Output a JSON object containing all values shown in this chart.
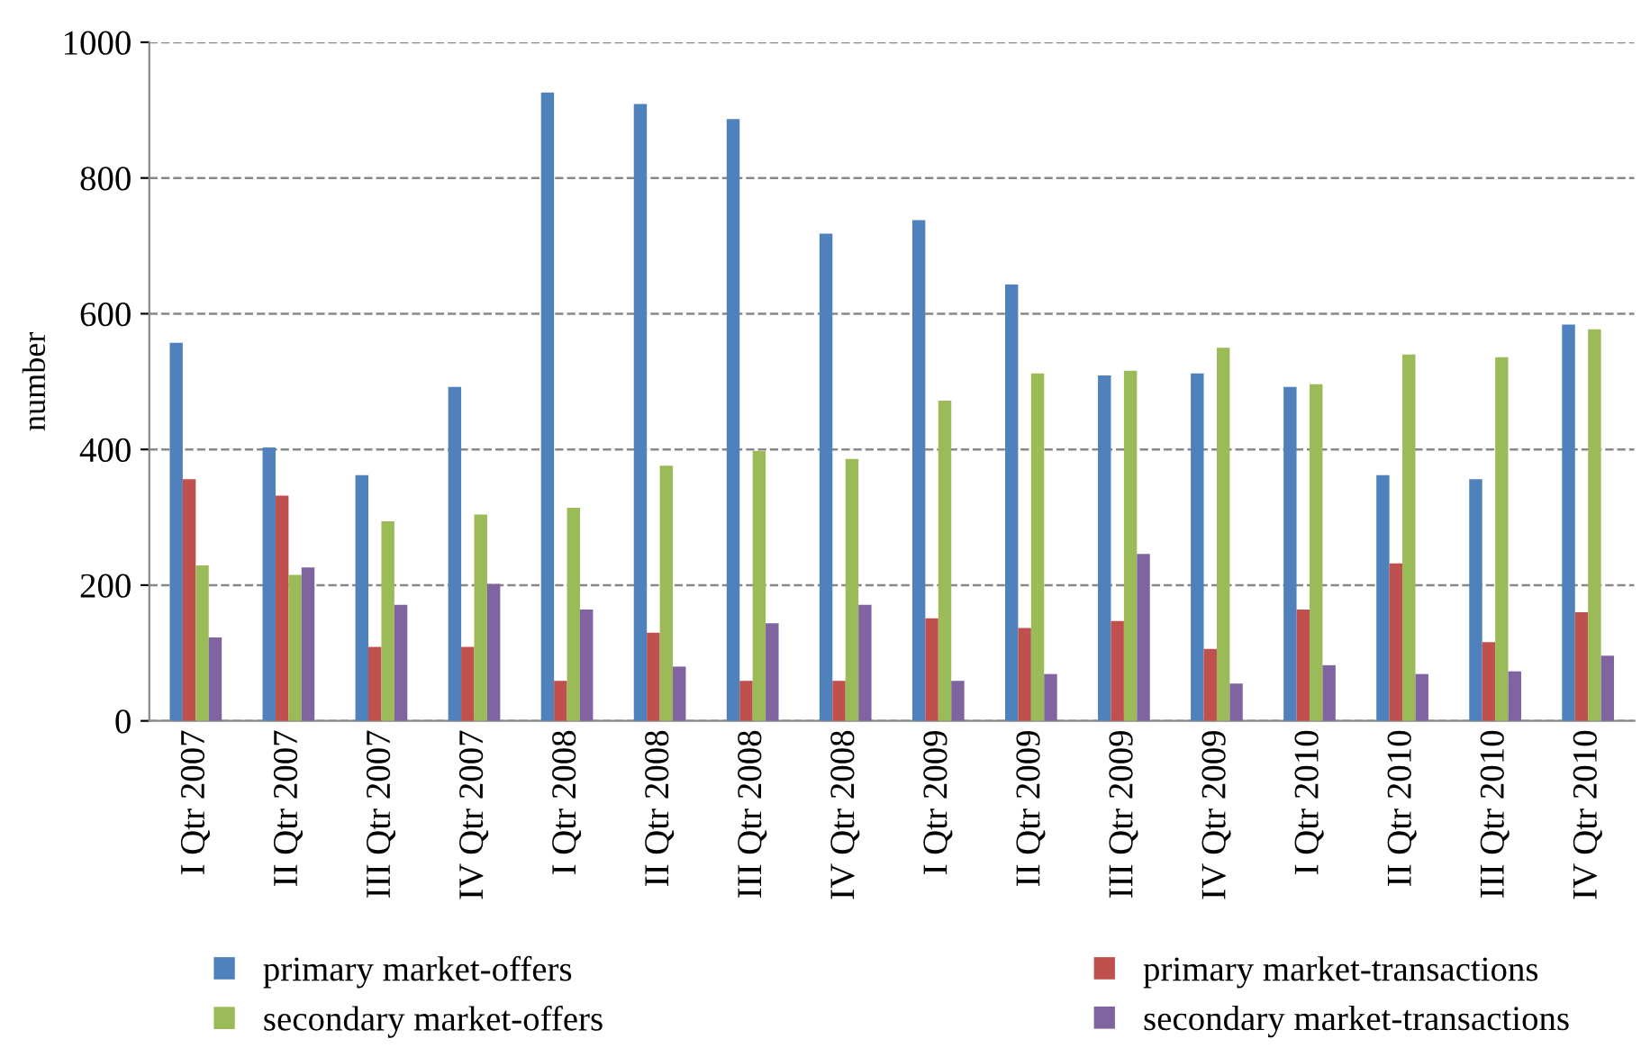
{
  "chart_data": {
    "type": "bar",
    "ylabel": "number",
    "categories": [
      "I Qtr 2007",
      "II Qtr 2007",
      "III Qtr 2007",
      "IV Qtr 2007",
      "I Qtr 2008",
      "II Qtr 2008",
      "III Qtr 2008",
      "IV Qtr 2008",
      "I Qtr 2009",
      "II Qtr 2009",
      "III Qtr 2009",
      "IV Qtr 2009",
      "I Qtr 2010",
      "II Qtr 2010",
      "III Qtr 2010",
      "IV Qtr 2010"
    ],
    "series": [
      {
        "name": "primary market-offers",
        "color": "#4f81bd",
        "values": [
          557,
          403,
          362,
          492,
          926,
          909,
          887,
          718,
          738,
          643,
          509,
          512,
          492,
          362,
          356,
          584
        ]
      },
      {
        "name": "primary market-transactions",
        "color": "#c0504d",
        "values": [
          356,
          332,
          109,
          109,
          59,
          130,
          59,
          59,
          151,
          137,
          147,
          106,
          164,
          232,
          116,
          160
        ]
      },
      {
        "name": "secondary market-offers",
        "color": "#9bbb59",
        "values": [
          229,
          215,
          294,
          304,
          314,
          376,
          398,
          386,
          472,
          512,
          516,
          550,
          496,
          540,
          536,
          577
        ]
      },
      {
        "name": "secondary market-transactions",
        "color": "#8064a2",
        "values": [
          123,
          226,
          171,
          202,
          164,
          80,
          144,
          171,
          59,
          69,
          246,
          55,
          82,
          69,
          73,
          96
        ]
      }
    ],
    "ylim": [
      0,
      1000
    ],
    "yticks": [
      0,
      200,
      400,
      600,
      800,
      1000
    ],
    "grid": "y",
    "legend": "bottom"
  }
}
